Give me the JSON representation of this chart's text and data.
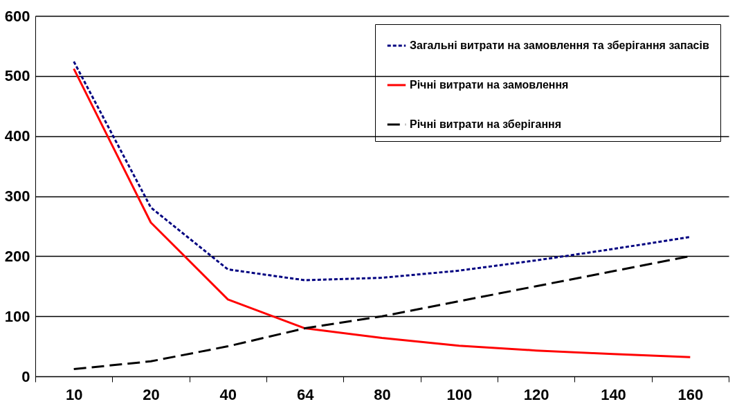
{
  "chart_data": {
    "type": "line",
    "categories": [
      "10",
      "20",
      "40",
      "64",
      "80",
      "100",
      "120",
      "140",
      "160"
    ],
    "series": [
      {
        "name": "Загальні витрати на замовлення та зберігання запасів",
        "color": "#000080",
        "line_style": "dotted",
        "values": [
          524,
          281,
          178,
          160,
          164,
          176,
          193,
          212,
          232
        ]
      },
      {
        "name": "Річні витрати на замовлення",
        "color": "#ff0000",
        "line_style": "solid",
        "values": [
          512,
          256,
          128,
          80,
          64,
          51,
          43,
          37,
          32
        ]
      },
      {
        "name": "Річні витрати на зберігання",
        "color": "#000000",
        "line_style": "dashed",
        "values": [
          12,
          25,
          50,
          80,
          100,
          125,
          150,
          175,
          200
        ]
      }
    ],
    "ylim": [
      0,
      600
    ],
    "yticks": [
      0,
      100,
      200,
      300,
      400,
      500,
      600
    ],
    "grid": "y",
    "legend": "top right",
    "marker": "none"
  }
}
